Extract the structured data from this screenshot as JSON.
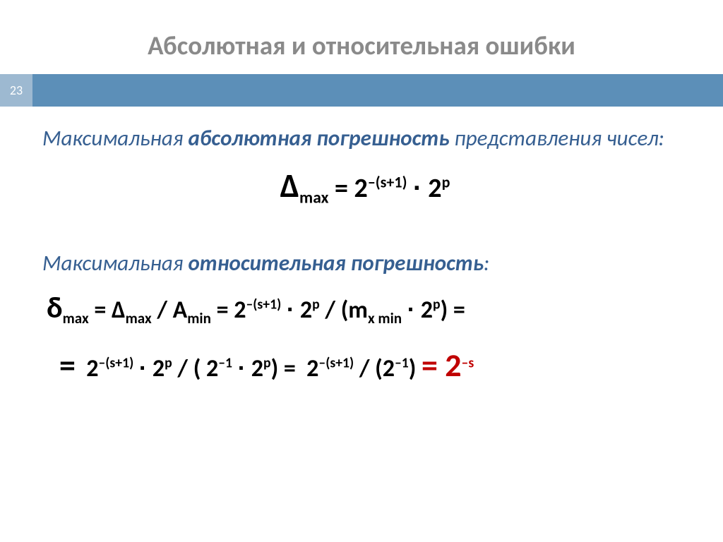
{
  "title": "Абсолютная и относительная ошибки",
  "page_number": "23",
  "description1_prefix": "Максимальная ",
  "description1_em": "абсолютная погрешность",
  "description1_suffix": " представления чисел:",
  "description2_prefix": "Максимальная ",
  "description2_em": "относительная погрешность",
  "description2_suffix": ":",
  "colors": {
    "title": "#8a8a8a",
    "bar": "#5c8fb8",
    "pagenum_bg": "#9db9d1",
    "desc": "#365f91",
    "red": "#c00000",
    "background": "#ffffff"
  },
  "fonts": {
    "title_size": 37,
    "desc_size": 31,
    "formula_size": 36
  }
}
